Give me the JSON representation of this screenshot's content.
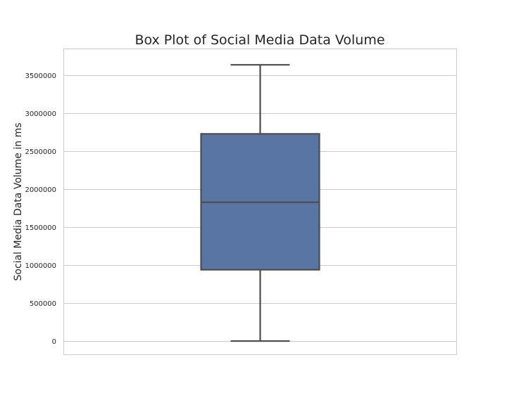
{
  "chart_data": {
    "type": "box",
    "title": "Box Plot of Social Media Data Volume",
    "xlabel": "",
    "ylabel": "Social Media Data Volume in ms",
    "ylim": [
      -180000,
      3850000
    ],
    "yticks": [
      0,
      500000,
      1000000,
      1500000,
      2000000,
      2500000,
      3000000,
      3500000
    ],
    "ytick_labels": [
      "0",
      "500000",
      "1000000",
      "1500000",
      "2000000",
      "2500000",
      "3000000",
      "3500000"
    ],
    "grid": true,
    "box": {
      "whisker_low": 0,
      "q1": 940000,
      "median": 1830000,
      "q3": 2730000,
      "whisker_high": 3640000
    },
    "box_color": "#5975a4",
    "line_color": "#4c4c4c"
  }
}
